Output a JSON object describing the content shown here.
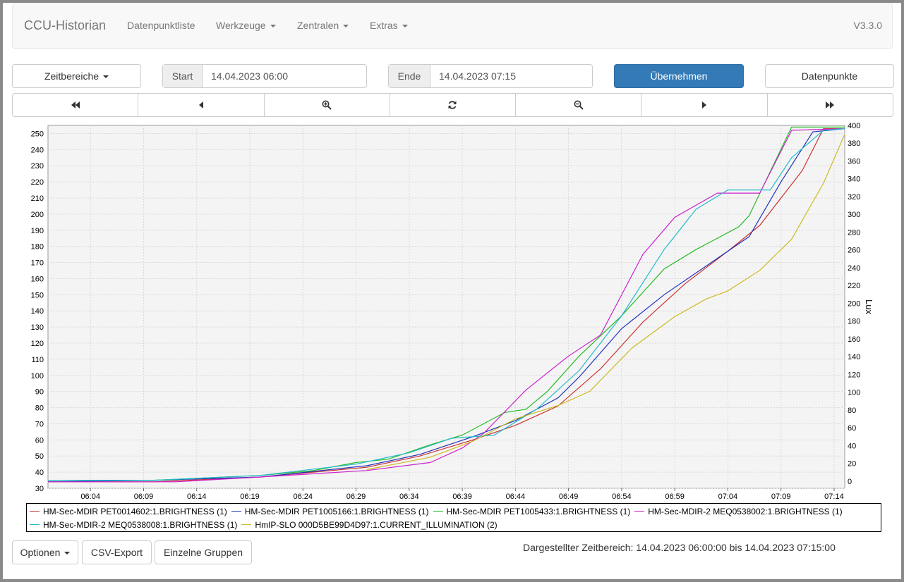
{
  "navbar": {
    "brand": "CCU-Historian",
    "items": [
      "Datenpunktliste",
      "Werkzeuge",
      "Zentralen",
      "Extras"
    ],
    "version": "V3.3.0"
  },
  "toolbar": {
    "timeranges_label": "Zeitbereiche",
    "start_label": "Start",
    "start_value": "14.04.2023 06:00",
    "end_label": "Ende",
    "end_value": "14.04.2023 07:15",
    "apply_label": "Übernehmen",
    "datapoints_label": "Datenpunkte"
  },
  "nav_buttons": [
    "fast-backward-icon",
    "backward-icon",
    "zoom-in-icon",
    "refresh-icon",
    "zoom-out-icon",
    "forward-icon",
    "fast-forward-icon"
  ],
  "footer": {
    "options_label": "Optionen",
    "csv_label": "CSV-Export",
    "groups_label": "Einzelne Gruppen",
    "range_text": "Dargestellter Zeitbereich: 14.04.2023 06:00:00 bis 14.04.2023 07:15:00"
  },
  "chart_data": {
    "type": "line",
    "x_range": [
      "06:00",
      "07:15"
    ],
    "x_ticks": [
      "06:04",
      "06:09",
      "06:14",
      "06:19",
      "06:24",
      "06:29",
      "06:34",
      "06:39",
      "06:44",
      "06:49",
      "06:54",
      "06:59",
      "07:04",
      "07:09",
      "07:14"
    ],
    "y_left": {
      "label": "",
      "range": [
        30,
        255
      ],
      "ticks": [
        30,
        40,
        50,
        60,
        70,
        80,
        90,
        100,
        110,
        120,
        130,
        140,
        150,
        160,
        170,
        180,
        190,
        200,
        210,
        220,
        230,
        240,
        250
      ]
    },
    "y_right": {
      "label": "Lux",
      "range": [
        -8,
        400
      ],
      "ticks": [
        0,
        20,
        40,
        60,
        80,
        100,
        120,
        140,
        160,
        180,
        200,
        220,
        240,
        260,
        280,
        300,
        320,
        340,
        360,
        380,
        400
      ]
    },
    "grid": true,
    "legend_position": "bottom",
    "series": [
      {
        "name": "HM-Sec-MDIR PET0014602:1.BRIGHTNESS (1)",
        "color": "#cc3333",
        "axis": "left",
        "points": [
          [
            "06:00",
            34
          ],
          [
            "06:10",
            34
          ],
          [
            "06:20",
            37
          ],
          [
            "06:30",
            43
          ],
          [
            "06:35",
            50
          ],
          [
            "06:40",
            60
          ],
          [
            "06:44",
            69
          ],
          [
            "06:48",
            81
          ],
          [
            "06:52",
            104
          ],
          [
            "06:56",
            133
          ],
          [
            "07:00",
            157
          ],
          [
            "07:04",
            177
          ],
          [
            "07:07",
            193
          ],
          [
            "07:11",
            227
          ],
          [
            "07:13",
            253
          ],
          [
            "07:15",
            253
          ]
        ]
      },
      {
        "name": "HM-Sec-MDIR PET1005166:1.BRIGHTNESS (1)",
        "color": "#2233bb",
        "axis": "left",
        "points": [
          [
            "06:00",
            34
          ],
          [
            "06:10",
            35
          ],
          [
            "06:20",
            37
          ],
          [
            "06:30",
            44
          ],
          [
            "06:35",
            51
          ],
          [
            "06:40",
            62
          ],
          [
            "06:44",
            72
          ],
          [
            "06:48",
            86
          ],
          [
            "06:50",
            99
          ],
          [
            "06:54",
            129
          ],
          [
            "06:58",
            150
          ],
          [
            "07:02",
            168
          ],
          [
            "07:06",
            186
          ],
          [
            "07:09",
            220
          ],
          [
            "07:12",
            251
          ],
          [
            "07:15",
            253
          ]
        ]
      },
      {
        "name": "HM-Sec-MDIR PET1005433:1.BRIGHTNESS (1)",
        "color": "#22bb22",
        "axis": "left",
        "points": [
          [
            "06:00",
            35
          ],
          [
            "06:10",
            35
          ],
          [
            "06:20",
            38
          ],
          [
            "06:25",
            41
          ],
          [
            "06:29",
            46
          ],
          [
            "06:32",
            48
          ],
          [
            "06:36",
            57
          ],
          [
            "06:38",
            61
          ],
          [
            "06:39",
            63
          ],
          [
            "06:43",
            77
          ],
          [
            "06:45",
            79
          ],
          [
            "06:47",
            90
          ],
          [
            "06:50",
            112
          ],
          [
            "06:54",
            137
          ],
          [
            "06:58",
            166
          ],
          [
            "07:01",
            178
          ],
          [
            "07:05",
            192
          ],
          [
            "07:06",
            199
          ],
          [
            "07:10",
            254
          ],
          [
            "07:15",
            254
          ]
        ]
      },
      {
        "name": "HM-Sec-MDIR-2 MEQ0538002:1.BRIGHTNESS (1)",
        "color": "#cc22cc",
        "axis": "left",
        "points": [
          [
            "06:00",
            34
          ],
          [
            "06:12",
            34
          ],
          [
            "06:20",
            37
          ],
          [
            "06:25",
            39
          ],
          [
            "06:30",
            41
          ],
          [
            "06:36",
            46
          ],
          [
            "06:39",
            55
          ],
          [
            "06:41",
            64
          ],
          [
            "06:45",
            91
          ],
          [
            "06:49",
            112
          ],
          [
            "06:52",
            125
          ],
          [
            "06:56",
            175
          ],
          [
            "06:59",
            198
          ],
          [
            "07:03",
            213
          ],
          [
            "07:07",
            213
          ],
          [
            "07:10",
            252
          ],
          [
            "07:15",
            253
          ]
        ]
      },
      {
        "name": "HM-Sec-MDIR-2 MEQ0538008:1.BRIGHTNESS (1)",
        "color": "#22bbcc",
        "axis": "left",
        "points": [
          [
            "06:00",
            35
          ],
          [
            "06:10",
            35
          ],
          [
            "06:20",
            38
          ],
          [
            "06:29",
            45
          ],
          [
            "06:34",
            52
          ],
          [
            "06:38",
            61
          ],
          [
            "06:42",
            63
          ],
          [
            "06:46",
            79
          ],
          [
            "06:50",
            103
          ],
          [
            "06:54",
            137
          ],
          [
            "06:58",
            178
          ],
          [
            "07:01",
            203
          ],
          [
            "07:04",
            215
          ],
          [
            "07:08",
            215
          ],
          [
            "07:10",
            235
          ],
          [
            "07:13",
            252
          ],
          [
            "07:15",
            253
          ]
        ]
      },
      {
        "name": "HmIP-SLO 000D5BE99D4D97:1.CURRENT_ILLUMINATION (2)",
        "color": "#ccbb22",
        "axis": "right",
        "points": [
          [
            "06:30",
            13
          ],
          [
            "06:33",
            20
          ],
          [
            "06:36",
            27
          ],
          [
            "06:40",
            45
          ],
          [
            "06:44",
            70
          ],
          [
            "06:48",
            85
          ],
          [
            "06:51",
            101
          ],
          [
            "06:55",
            150
          ],
          [
            "06:59",
            185
          ],
          [
            "07:02",
            205
          ],
          [
            "07:04",
            214
          ],
          [
            "07:07",
            237
          ],
          [
            "07:10",
            272
          ],
          [
            "07:13",
            335
          ],
          [
            "07:15",
            390
          ]
        ]
      }
    ]
  }
}
